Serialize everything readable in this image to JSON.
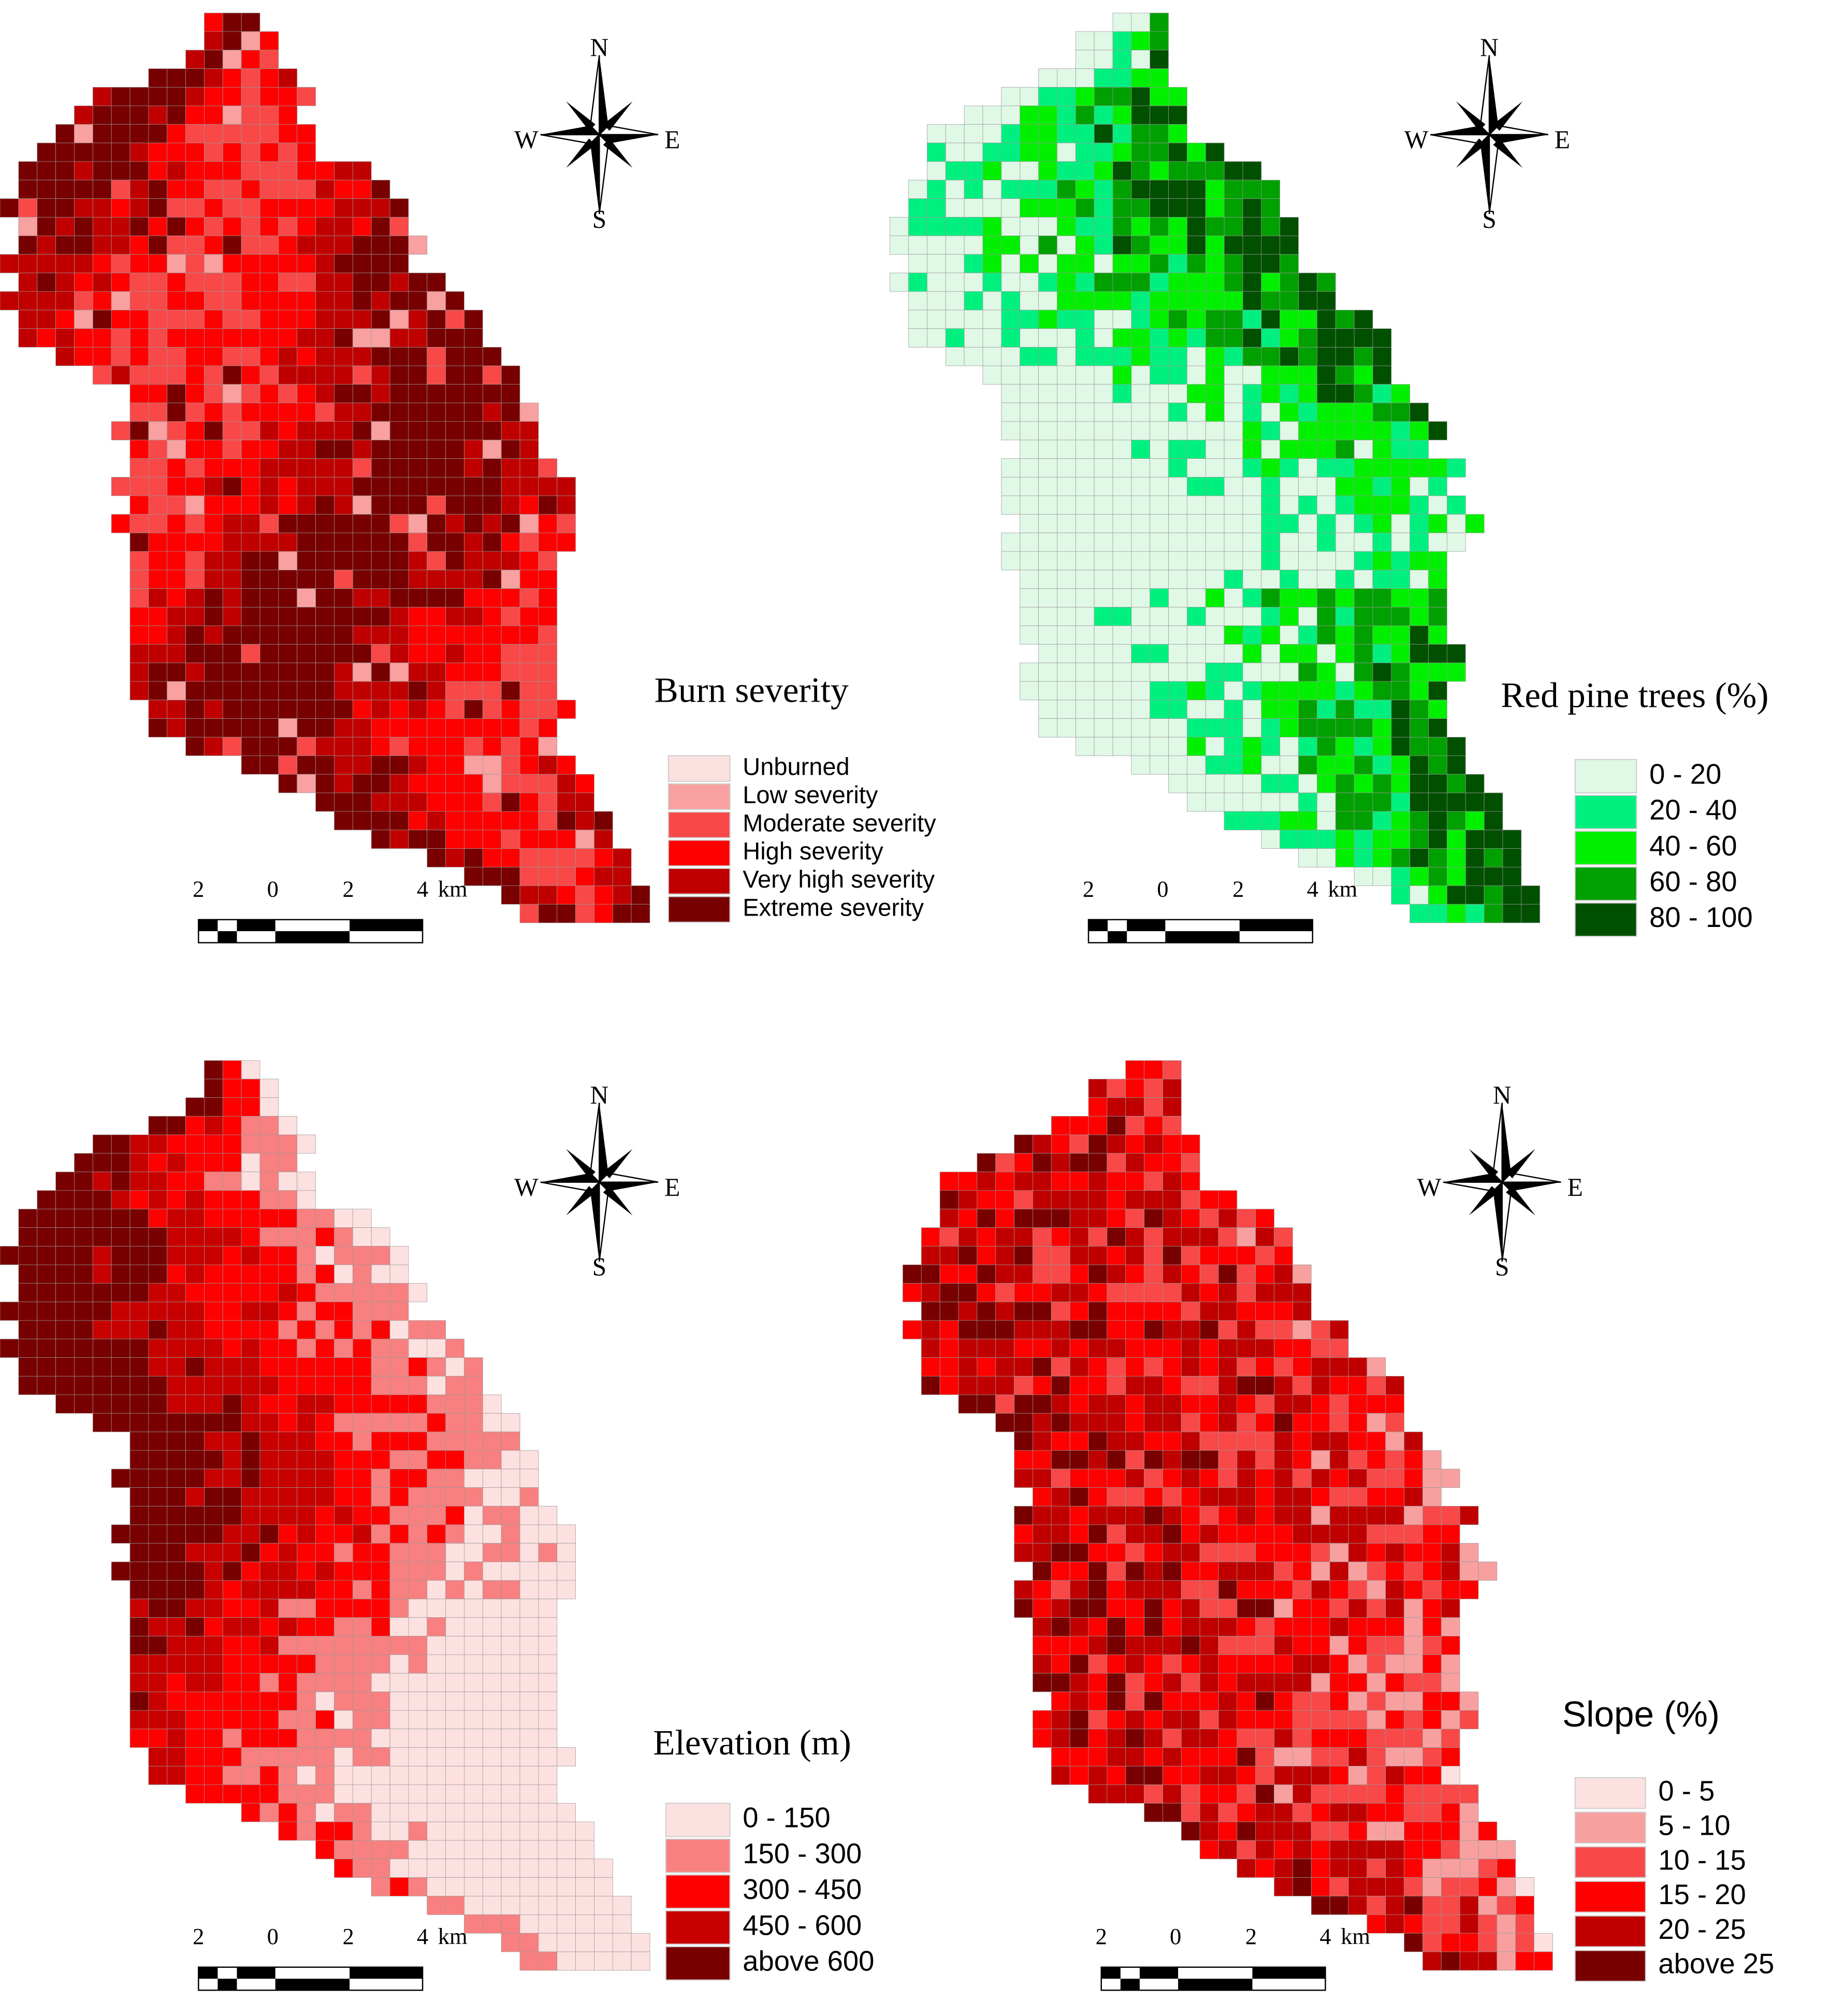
{
  "panels": [
    {
      "title": "Burn severity",
      "legend": [
        {
          "label": "Unburned",
          "color": "#fde0e0"
        },
        {
          "label": "Low severity",
          "color": "#f9a0a0"
        },
        {
          "label": "Moderate severity",
          "color": "#f84848"
        },
        {
          "label": "High severity",
          "color": "#ff0000"
        },
        {
          "label": "Very high severity",
          "color": "#c00000"
        },
        {
          "label": "Extreme severity",
          "color": "#780000"
        }
      ],
      "compass": {
        "n": "N",
        "s": "S",
        "w": "W",
        "e": "E"
      },
      "scale": {
        "ticks": [
          "2",
          "0",
          "2",
          "4"
        ],
        "unit": "km"
      }
    },
    {
      "title": "Red pine trees (%)",
      "legend": [
        {
          "label": "0 - 20",
          "color": "#e0f8e6"
        },
        {
          "label": "20 - 40",
          "color": "#00f080"
        },
        {
          "label": "40 - 60",
          "color": "#00f000"
        },
        {
          "label": "60 - 80",
          "color": "#00a000"
        },
        {
          "label": "80 - 100",
          "color": "#005000"
        }
      ],
      "compass": {
        "n": "N",
        "s": "S",
        "w": "W",
        "e": "E"
      },
      "scale": {
        "ticks": [
          "2",
          "0",
          "2",
          "4"
        ],
        "unit": "km"
      }
    },
    {
      "title": "Elevation (m)",
      "legend": [
        {
          "label": "0 - 150",
          "color": "#fde0e0"
        },
        {
          "label": "150 - 300",
          "color": "#f88080"
        },
        {
          "label": "300 - 450",
          "color": "#ff0000"
        },
        {
          "label": "450 - 600",
          "color": "#c80000"
        },
        {
          "label": "above 600",
          "color": "#780000"
        }
      ],
      "compass": {
        "n": "N",
        "s": "S",
        "w": "W",
        "e": "E"
      },
      "scale": {
        "ticks": [
          "2",
          "0",
          "2",
          "4"
        ],
        "unit": "km"
      }
    },
    {
      "title": "Slope (%)",
      "legend": [
        {
          "label": "0 - 5",
          "color": "#fde0e0"
        },
        {
          "label": "5 - 10",
          "color": "#f8a0a0"
        },
        {
          "label": "10 - 15",
          "color": "#f84848"
        },
        {
          "label": "15 - 20",
          "color": "#ff0000"
        },
        {
          "label": "20 - 25",
          "color": "#c00000"
        },
        {
          "label": "above 25",
          "color": "#780000"
        }
      ],
      "compass": {
        "n": "N",
        "s": "S",
        "w": "W",
        "e": "E"
      },
      "scale": {
        "ticks": [
          "2",
          "0",
          "2",
          "4"
        ],
        "unit": "km"
      }
    }
  ]
}
